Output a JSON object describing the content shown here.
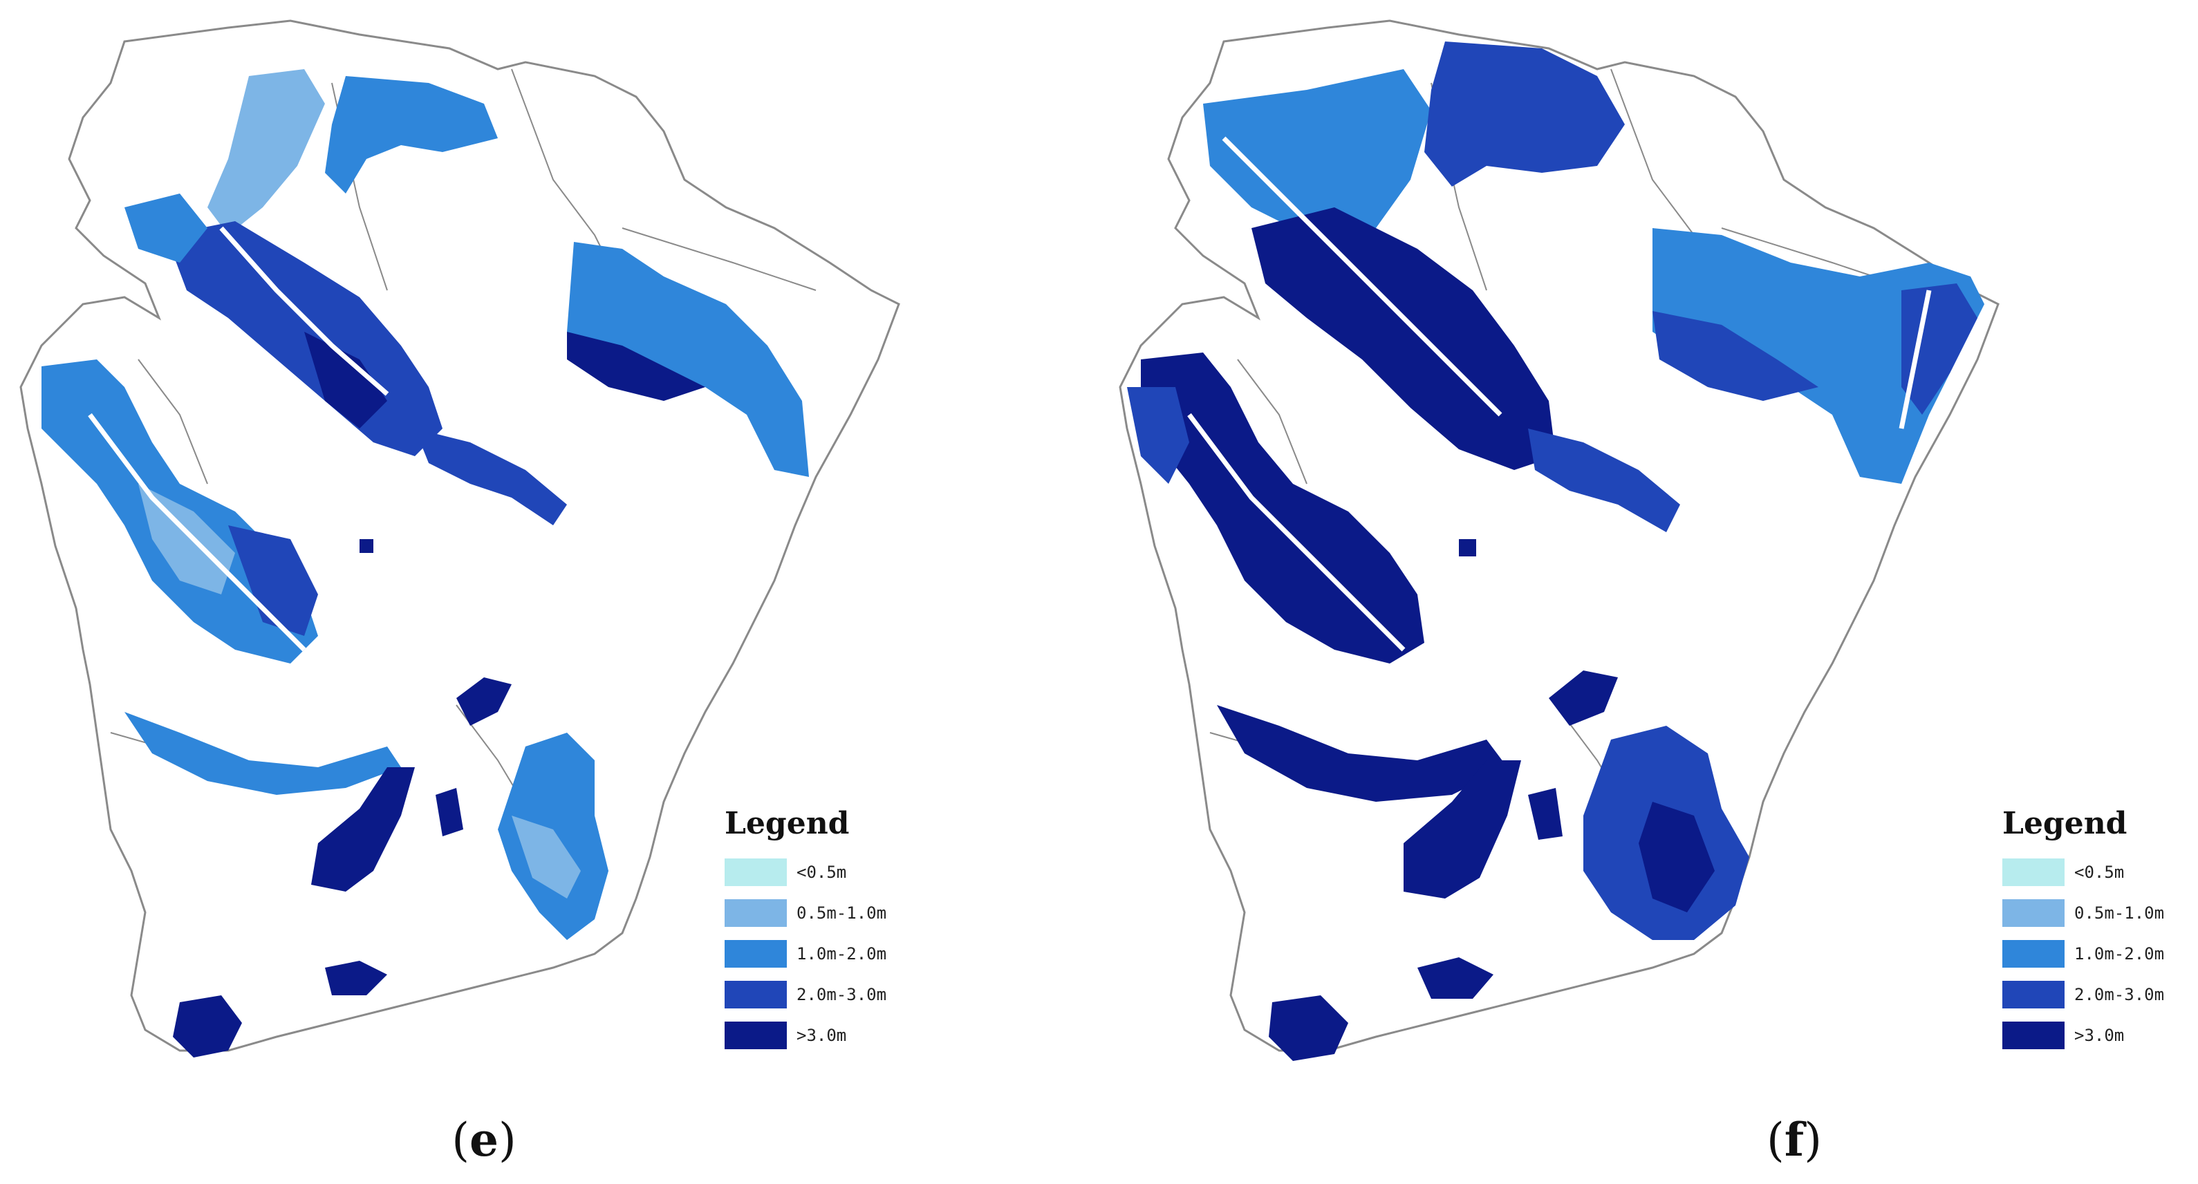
{
  "panels": [
    {
      "id": "e",
      "caption_open": "(",
      "caption_letter": "e",
      "caption_close": ")",
      "legend_title": "Legend",
      "legend_items": [
        {
          "label": "<0.5m",
          "color": "#b7ecee"
        },
        {
          "label": "0.5m-1.0m",
          "color": "#7db5e6"
        },
        {
          "label": "1.0m-2.0m",
          "color": "#2f86da"
        },
        {
          "label": "2.0m-3.0m",
          "color": "#2046b8"
        },
        {
          "label": ">3.0m",
          "color": "#0b1a88"
        }
      ]
    },
    {
      "id": "f",
      "caption_open": "(",
      "caption_letter": "f",
      "caption_close": ")",
      "legend_title": "Legend",
      "legend_items": [
        {
          "label": "<0.5m",
          "color": "#b7ecee"
        },
        {
          "label": "0.5m-1.0m",
          "color": "#7db5e6"
        },
        {
          "label": "1.0m-2.0m",
          "color": "#2f86da"
        },
        {
          "label": "2.0m-3.0m",
          "color": "#2046b8"
        },
        {
          "label": ">3.0m",
          "color": "#0b1a88"
        }
      ]
    }
  ],
  "colors": {
    "boundary": "#8a8a8a",
    "c05": "#b7ecee",
    "c10": "#7db5e6",
    "c20": "#2f86da",
    "c30": "#2046b8",
    "c3p": "#0b1a88"
  }
}
